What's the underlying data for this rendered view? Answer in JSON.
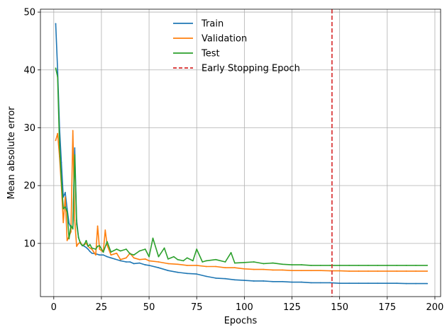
{
  "chart_data": {
    "type": "line",
    "xlabel": "Epochs",
    "ylabel": "Mean absolute error",
    "xlim": [
      -7,
      203
    ],
    "ylim": [
      0.8,
      50.5
    ],
    "xticks": [
      0,
      25,
      50,
      75,
      100,
      125,
      150,
      175,
      200
    ],
    "yticks": [
      10,
      20,
      30,
      40,
      50
    ],
    "grid": true,
    "legend_position": "upper center",
    "early_stopping_epoch": 146,
    "early_stopping_label": "Early Stopping Epoch",
    "colors": {
      "train": "#1f77b4",
      "validation": "#ff7f0e",
      "test": "#2ca02c",
      "early_stop": "#d62728"
    },
    "series": [
      {
        "name": "Train",
        "key": "train",
        "x": [
          1,
          2,
          3,
          4,
          5,
          6,
          7,
          8,
          9,
          10,
          11,
          12,
          13,
          14,
          15,
          16,
          17,
          18,
          19,
          20,
          22,
          24,
          26,
          28,
          30,
          32,
          35,
          38,
          40,
          42,
          45,
          48,
          50,
          55,
          60,
          65,
          70,
          75,
          80,
          85,
          90,
          95,
          100,
          105,
          110,
          115,
          120,
          125,
          130,
          135,
          140,
          145,
          150,
          155,
          160,
          165,
          170,
          175,
          180,
          185,
          190,
          196
        ],
        "y": [
          48,
          40,
          30,
          24,
          18,
          18.8,
          16,
          13.5,
          12.7,
          12.8,
          26.5,
          14,
          11,
          10,
          9.7,
          9.5,
          9.3,
          9,
          8.6,
          8.3,
          8.2,
          8,
          8,
          7.7,
          7.5,
          7.3,
          7,
          6.8,
          6.8,
          6.5,
          6.6,
          6.3,
          6.2,
          5.8,
          5.3,
          5,
          4.8,
          4.7,
          4.3,
          4,
          3.9,
          3.7,
          3.6,
          3.5,
          3.5,
          3.4,
          3.4,
          3.3,
          3.3,
          3.2,
          3.2,
          3.2,
          3.1,
          3.1,
          3.1,
          3.1,
          3.1,
          3.1,
          3.1,
          3.05,
          3.05,
          3.05
        ]
      },
      {
        "name": "Validation",
        "key": "validation",
        "x": [
          1,
          2,
          3,
          4,
          5,
          6,
          7,
          8,
          9,
          10,
          11,
          12,
          13,
          14,
          15,
          16,
          17,
          18,
          19,
          20,
          22,
          23,
          24,
          26,
          27,
          28,
          30,
          33,
          35,
          38,
          40,
          42,
          45,
          48,
          50,
          55,
          60,
          65,
          70,
          75,
          80,
          85,
          90,
          95,
          100,
          105,
          110,
          115,
          120,
          125,
          130,
          135,
          140,
          145,
          150,
          155,
          160,
          165,
          170,
          175,
          180,
          185,
          190,
          196
        ],
        "y": [
          27.8,
          29,
          25,
          20,
          13.6,
          18,
          10.5,
          11.2,
          12,
          29.5,
          14,
          9.5,
          10,
          10.2,
          9.6,
          9.8,
          10,
          9.5,
          9.2,
          9,
          8,
          13,
          9,
          8.5,
          12.3,
          9.7,
          8,
          8.3,
          7.2,
          7.5,
          8.3,
          7.5,
          7.2,
          7.3,
          7,
          6.8,
          6.5,
          6.4,
          6.2,
          6.2,
          6,
          6,
          5.8,
          5.8,
          5.6,
          5.5,
          5.5,
          5.4,
          5.4,
          5.3,
          5.3,
          5.3,
          5.3,
          5.25,
          5.25,
          5.2,
          5.2,
          5.2,
          5.2,
          5.2,
          5.2,
          5.2,
          5.2,
          5.2
        ]
      },
      {
        "name": "Test",
        "key": "test",
        "x": [
          1,
          2,
          3,
          4,
          5,
          6,
          7,
          8,
          9,
          10,
          11,
          12,
          13,
          14,
          15,
          16,
          17,
          18,
          19,
          20,
          22,
          23,
          24,
          26,
          28,
          30,
          33,
          35,
          38,
          40,
          42,
          45,
          48,
          50,
          52,
          55,
          58,
          60,
          63,
          65,
          68,
          70,
          73,
          75,
          78,
          80,
          85,
          90,
          93,
          95,
          100,
          105,
          110,
          115,
          120,
          125,
          130,
          135,
          140,
          145,
          150,
          155,
          160,
          165,
          170,
          175,
          180,
          185,
          190,
          196
        ],
        "y": [
          40.3,
          38.8,
          27,
          21,
          16,
          16.3,
          15.5,
          10.8,
          13.1,
          12.5,
          25.3,
          13.3,
          11,
          10,
          9.6,
          9.8,
          10.5,
          9.5,
          9.8,
          9.2,
          9,
          9.5,
          9.6,
          8.5,
          10.3,
          8.5,
          9,
          8.7,
          9,
          8.2,
          8,
          8.7,
          9,
          7.7,
          10.9,
          7.7,
          9.2,
          7.3,
          7.7,
          7.2,
          7,
          7.5,
          7,
          9,
          6.8,
          7,
          7.2,
          6.8,
          8.4,
          6.6,
          6.7,
          6.8,
          6.5,
          6.6,
          6.4,
          6.3,
          6.3,
          6.2,
          6.2,
          6.2,
          6.2,
          6.2,
          6.2,
          6.2,
          6.2,
          6.2,
          6.2,
          6.2,
          6.2,
          6.2
        ]
      }
    ]
  }
}
